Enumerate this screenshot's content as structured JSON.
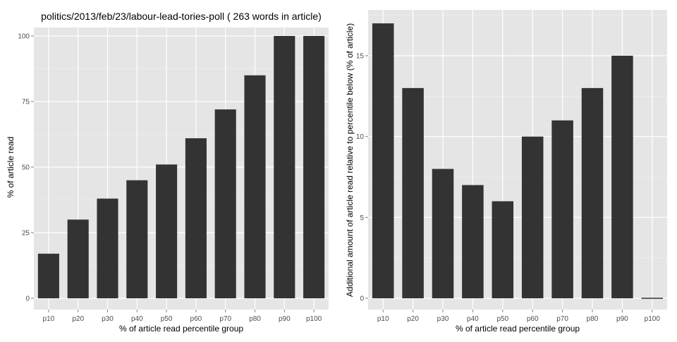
{
  "chart_data": [
    {
      "type": "bar",
      "title": "politics/2013/feb/23/labour-lead-tories-poll ( 263 words in article)",
      "xlabel": "% of article read percentile group",
      "ylabel": "% of article read",
      "categories": [
        "p10",
        "p20",
        "p30",
        "p40",
        "p50",
        "p60",
        "p70",
        "p80",
        "p90",
        "p100"
      ],
      "values": [
        17,
        30,
        38,
        45,
        51,
        61,
        72,
        85,
        100,
        100
      ],
      "ylim": [
        0,
        100
      ],
      "yticks": [
        0,
        25,
        50,
        75,
        100
      ],
      "grid": true,
      "colors": {
        "bar": "#333333",
        "panel": "#e5e5e5",
        "grid": "#ffffff"
      }
    },
    {
      "type": "bar",
      "title": "",
      "xlabel": "% of article read percentile group",
      "ylabel": "Additional amount of article read relative to percentile below (% of article)",
      "categories": [
        "p10",
        "p20",
        "p30",
        "p40",
        "p50",
        "p60",
        "p70",
        "p80",
        "p90",
        "p100"
      ],
      "values": [
        17,
        13,
        8,
        7,
        6,
        10,
        11,
        13,
        15,
        0
      ],
      "ylim": [
        0,
        17
      ],
      "yticks": [
        0,
        5,
        10,
        15
      ],
      "grid": true,
      "colors": {
        "bar": "#333333",
        "panel": "#e5e5e5",
        "grid": "#ffffff"
      }
    }
  ]
}
